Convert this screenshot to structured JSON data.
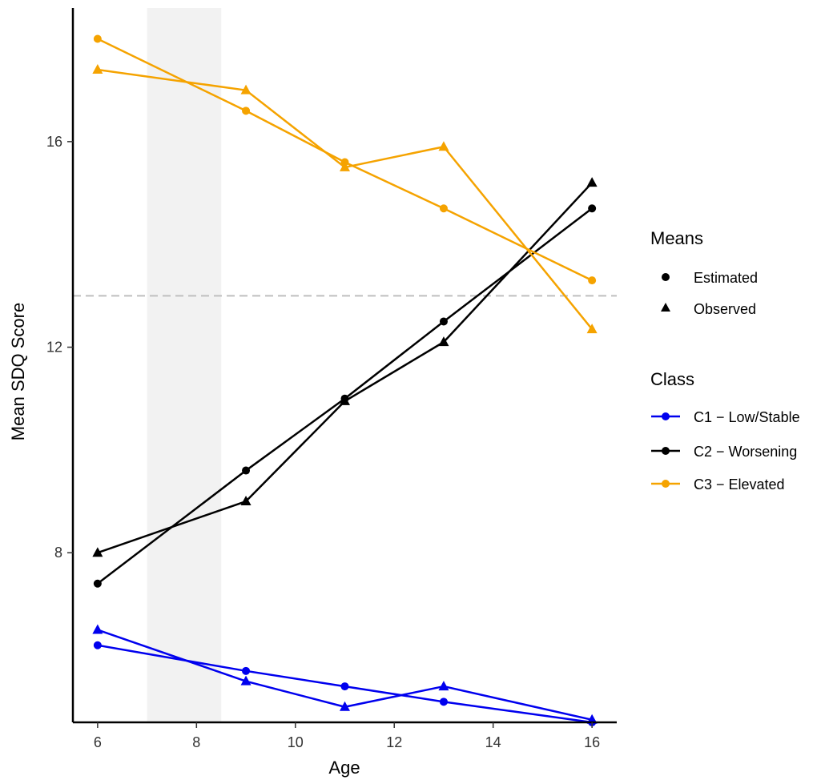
{
  "chart_data": {
    "type": "line",
    "xlabel": "Age",
    "ylabel": "Mean SDQ Score",
    "xlim": [
      5.5,
      16.5
    ],
    "ylim": [
      4.7,
      18.6
    ],
    "x_ticks": [
      "6",
      "8",
      "10",
      "12",
      "14",
      "16"
    ],
    "y_ticks": [
      "8",
      "12",
      "16"
    ],
    "shaded_region": {
      "x_start": 7.0,
      "x_end": 8.5,
      "color": "#f2f2f2"
    },
    "reference_line": {
      "y": 13.0,
      "style": "dashed",
      "color": "#bfbfbf"
    },
    "grid": false,
    "legend_placement": "right",
    "means_legend": {
      "title": "Means",
      "items": [
        {
          "label": "Estimated",
          "shape": "circle"
        },
        {
          "label": "Observed",
          "shape": "triangle"
        }
      ]
    },
    "class_legend": {
      "title": "Class",
      "items": [
        {
          "label": "C1 − Low/Stable",
          "color": "#0000ee"
        },
        {
          "label": "C2 − Worsening",
          "color": "#000000"
        },
        {
          "label": "C3 − Elevated",
          "color": "#f5a300"
        }
      ]
    },
    "x": [
      6,
      9,
      11,
      13,
      16
    ],
    "series": [
      {
        "name": "C1 − Low/Stable",
        "means": "Estimated",
        "color": "#0000ee",
        "shape": "circle",
        "values": [
          6.2,
          5.7,
          5.4,
          5.1,
          4.7
        ]
      },
      {
        "name": "C1 − Low/Stable",
        "means": "Observed",
        "color": "#0000ee",
        "shape": "triangle",
        "values": [
          6.5,
          5.5,
          5.0,
          5.4,
          4.75
        ]
      },
      {
        "name": "C2 − Worsening",
        "means": "Estimated",
        "color": "#000000",
        "shape": "circle",
        "values": [
          7.4,
          9.6,
          11.0,
          12.5,
          14.7
        ]
      },
      {
        "name": "C2 − Worsening",
        "means": "Observed",
        "color": "#000000",
        "shape": "triangle",
        "values": [
          8.0,
          9.0,
          10.95,
          12.1,
          15.2
        ]
      },
      {
        "name": "C3 − Elevated",
        "means": "Estimated",
        "color": "#f5a300",
        "shape": "circle",
        "values": [
          18.0,
          16.6,
          15.6,
          14.7,
          13.3
        ]
      },
      {
        "name": "C3 − Elevated",
        "means": "Observed",
        "color": "#f5a300",
        "shape": "triangle",
        "values": [
          17.4,
          17.0,
          15.5,
          15.9,
          12.35
        ]
      }
    ]
  }
}
